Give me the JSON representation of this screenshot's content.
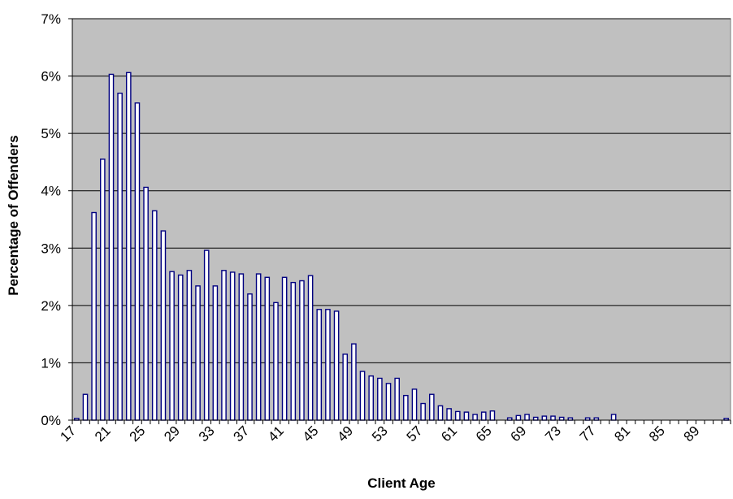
{
  "chart_data": {
    "type": "bar",
    "title": "",
    "xlabel": "Client Age",
    "ylabel": "Percentage of Offenders",
    "ylim": [
      0,
      7
    ],
    "y_ticks": [
      "0%",
      "1%",
      "2%",
      "3%",
      "4%",
      "5%",
      "6%",
      "7%"
    ],
    "x_tick_labels": [
      "17",
      "21",
      "25",
      "29",
      "33",
      "37",
      "41",
      "45",
      "49",
      "53",
      "57",
      "61",
      "65",
      "69",
      "73",
      "77",
      "81",
      "85",
      "89"
    ],
    "grid": "horizontal",
    "legend": "none",
    "colors": {
      "plot_bg": "#c0c0c0",
      "bar_fill": "#ffffff",
      "bar_stroke": "#000080",
      "grid": "#000000"
    },
    "x_categories": [
      17,
      18,
      19,
      20,
      21,
      22,
      23,
      24,
      25,
      26,
      27,
      28,
      29,
      30,
      31,
      32,
      33,
      34,
      35,
      36,
      37,
      38,
      39,
      40,
      41,
      42,
      43,
      44,
      45,
      46,
      47,
      48,
      49,
      50,
      51,
      52,
      53,
      54,
      55,
      56,
      57,
      58,
      59,
      60,
      61,
      62,
      63,
      64,
      65,
      66,
      67,
      68,
      69,
      70,
      71,
      72,
      73,
      74,
      75,
      76,
      77,
      78,
      79,
      80,
      81,
      82,
      83,
      84,
      85,
      86,
      87,
      88,
      89,
      90,
      91,
      92
    ],
    "values": [
      0.03,
      0.45,
      3.62,
      4.55,
      6.03,
      5.7,
      6.06,
      5.53,
      4.06,
      3.65,
      3.3,
      2.59,
      2.53,
      2.61,
      2.34,
      2.96,
      2.34,
      2.61,
      2.58,
      2.55,
      2.2,
      2.55,
      2.49,
      2.05,
      2.49,
      2.4,
      2.43,
      2.52,
      1.93,
      1.93,
      1.9,
      1.15,
      1.33,
      0.85,
      0.77,
      0.73,
      0.64,
      0.73,
      0.43,
      0.54,
      0.29,
      0.45,
      0.25,
      0.2,
      0.15,
      0.14,
      0.1,
      0.14,
      0.16,
      0,
      0.04,
      0.08,
      0.1,
      0.05,
      0.07,
      0.07,
      0.05,
      0.04,
      0,
      0.04,
      0.04,
      0,
      0.1,
      0,
      0,
      0,
      0,
      0,
      0,
      0,
      0,
      0,
      0,
      0,
      0,
      0.03
    ]
  }
}
